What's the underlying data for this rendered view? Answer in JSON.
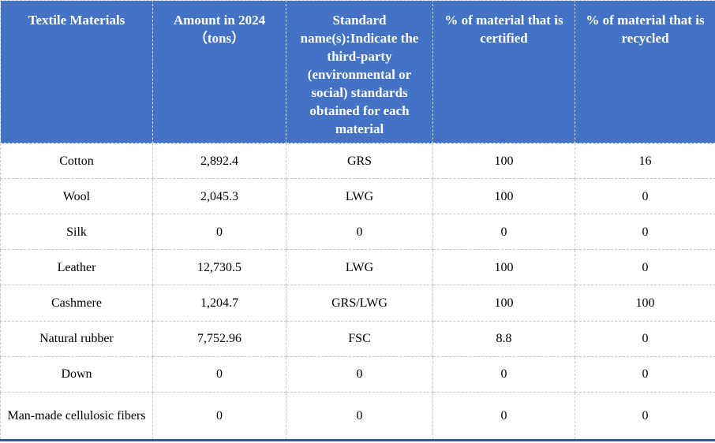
{
  "table": {
    "title": "Textile materials table",
    "accent_color": "#4472C4",
    "bottom_border_color": "#2F5597",
    "grid_color": "#C6C6C6",
    "header_text_color": "#FFFFFF",
    "body_text_color": "#000000",
    "headers": [
      "Textile Materials",
      "Amount in 2024（tons）",
      "Standard name(s):Indicate the third-party (environmental or social) standards obtained for each material",
      "% of material that is certified",
      "% of material that is recycled"
    ],
    "rows": [
      [
        "Cotton",
        "2,892.4",
        "GRS",
        "100",
        "16"
      ],
      [
        "Wool",
        "2,045.3",
        "LWG",
        "100",
        "0"
      ],
      [
        "Silk",
        "0",
        "0",
        "0",
        "0"
      ],
      [
        "Leather",
        "12,730.5",
        "LWG",
        "100",
        "0"
      ],
      [
        "Cashmere",
        "1,204.7",
        "GRS/LWG",
        "100",
        "100"
      ],
      [
        "Natural rubber",
        "7,752.96",
        "FSC",
        "8.8",
        "0"
      ],
      [
        "Down",
        "0",
        "0",
        "0",
        "0"
      ],
      [
        "Man-made cellulosic fibers",
        "0",
        "0",
        "0",
        "0"
      ]
    ]
  }
}
